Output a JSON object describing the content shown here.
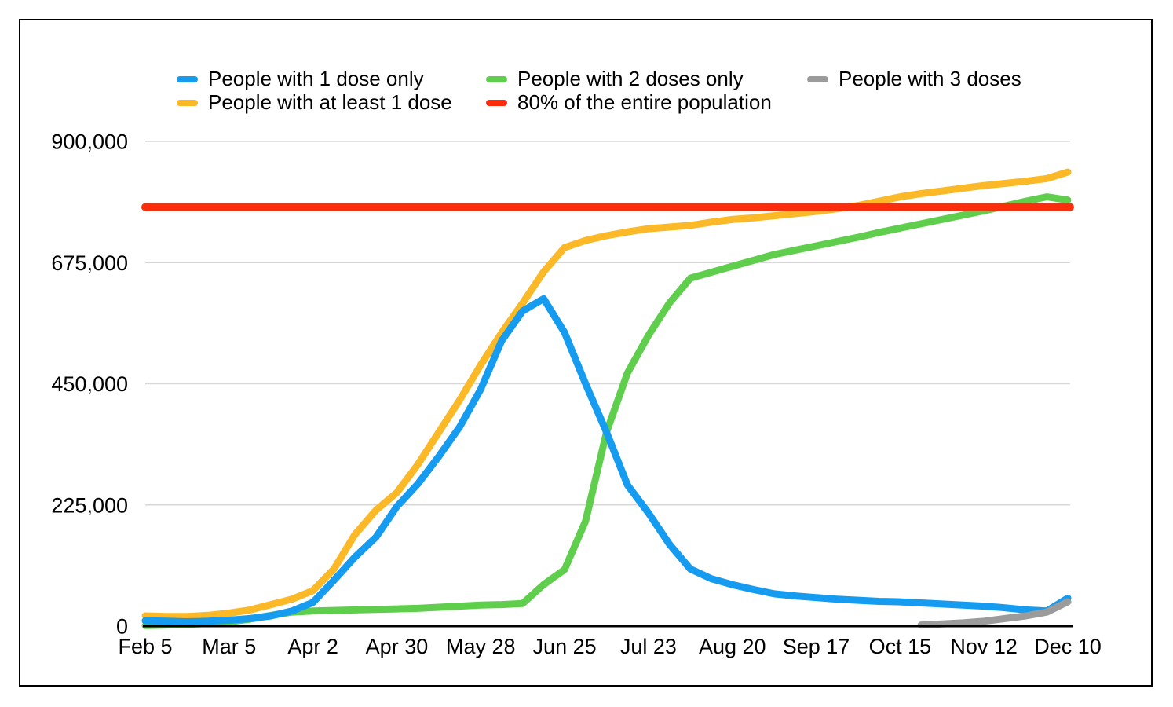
{
  "chart_data": {
    "type": "line",
    "title": "",
    "xlabel": "",
    "ylabel": "",
    "ylim": [
      0,
      900000
    ],
    "grid": "horizontal",
    "legend_position": "top",
    "y_ticks": [
      0,
      225000,
      450000,
      675000,
      900000
    ],
    "y_tick_labels": [
      "0",
      "225,000",
      "450,000",
      "675,000",
      "900,000"
    ],
    "x_tick_labels": [
      "Feb 5",
      "Mar 5",
      "Apr 2",
      "Apr 30",
      "May 28",
      "Jun 25",
      "Jul 23",
      "Aug 20",
      "Sep 17",
      "Oct 15",
      "Nov 12",
      "Dec 10"
    ],
    "x_weekly_dates": [
      "Feb 5",
      "Feb 12",
      "Feb 19",
      "Feb 26",
      "Mar 5",
      "Mar 12",
      "Mar 19",
      "Mar 26",
      "Apr 2",
      "Apr 9",
      "Apr 16",
      "Apr 23",
      "Apr 30",
      "May 7",
      "May 14",
      "May 21",
      "May 28",
      "Jun 4",
      "Jun 11",
      "Jun 18",
      "Jun 25",
      "Jul 2",
      "Jul 9",
      "Jul 16",
      "Jul 23",
      "Jul 30",
      "Aug 6",
      "Aug 13",
      "Aug 20",
      "Aug 27",
      "Sep 3",
      "Sep 10",
      "Sep 17",
      "Sep 24",
      "Oct 1",
      "Oct 8",
      "Oct 15",
      "Oct 22",
      "Oct 29",
      "Nov 5",
      "Nov 12",
      "Nov 19",
      "Nov 26",
      "Dec 3",
      "Dec 10"
    ],
    "series": [
      {
        "name": "People with 1 dose only",
        "color": "#159BF0",
        "values": [
          10000,
          9000,
          8000,
          9000,
          11000,
          14000,
          19000,
          28000,
          44000,
          85000,
          128000,
          165000,
          222000,
          264000,
          315000,
          370000,
          440000,
          530000,
          585000,
          608000,
          545000,
          450000,
          360000,
          262000,
          210000,
          152000,
          106000,
          88000,
          77000,
          68000,
          60000,
          56000,
          53000,
          50000,
          48000,
          46000,
          45000,
          43000,
          41000,
          39000,
          37000,
          34000,
          30000,
          28000,
          52000
        ]
      },
      {
        "name": "People with at least 1 dose",
        "color": "#FBB827",
        "values": [
          19000,
          18000,
          18000,
          20000,
          24000,
          30000,
          40000,
          50000,
          66000,
          106000,
          170000,
          215000,
          248000,
          300000,
          360000,
          420000,
          485000,
          545000,
          600000,
          658000,
          703000,
          716000,
          725000,
          732000,
          738000,
          741000,
          744000,
          750000,
          755000,
          758000,
          762000,
          766000,
          770000,
          775000,
          781000,
          789000,
          797000,
          803000,
          808000,
          813000,
          818000,
          822000,
          826000,
          831000,
          843000
        ]
      },
      {
        "name": "People with 2 doses only",
        "color": "#60CE4D",
        "values": [
          1000,
          2000,
          3000,
          5000,
          8000,
          13000,
          20000,
          26000,
          28000,
          29000,
          30000,
          31000,
          32000,
          33000,
          35000,
          37000,
          39000,
          40000,
          42000,
          77000,
          105000,
          195000,
          360000,
          470000,
          540000,
          600000,
          646000,
          657000,
          668000,
          679000,
          690000,
          698000,
          706000,
          714000,
          722000,
          731000,
          739000,
          747000,
          755000,
          763000,
          771000,
          780000,
          789000,
          797000,
          791000
        ]
      },
      {
        "name": "80% of the entire population",
        "color": "#FB2D0D",
        "hline_value": 778000,
        "values": null
      },
      {
        "name": "People with 3 doses",
        "color": "#9B9B9B",
        "values": [
          null,
          null,
          null,
          null,
          null,
          null,
          null,
          null,
          null,
          null,
          null,
          null,
          null,
          null,
          null,
          null,
          null,
          null,
          null,
          null,
          null,
          null,
          null,
          null,
          null,
          null,
          null,
          null,
          null,
          null,
          null,
          null,
          null,
          null,
          null,
          null,
          null,
          2000,
          4000,
          6000,
          9000,
          14000,
          19000,
          26000,
          45000
        ]
      }
    ]
  }
}
